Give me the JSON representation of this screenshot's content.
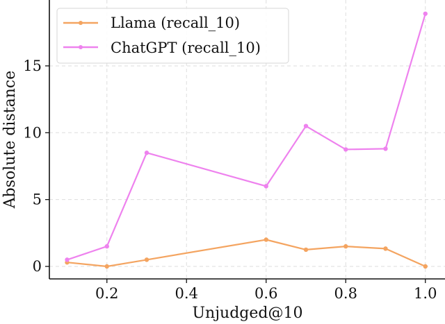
{
  "chart_data": {
    "type": "line",
    "title": "",
    "xlabel": "Unjudged@10",
    "ylabel": "Absolute distance",
    "x": [
      0.1,
      0.2,
      0.3,
      0.6,
      0.7,
      0.8,
      0.9,
      1.0
    ],
    "series": [
      {
        "name": "Llama (recall_10)",
        "color": "#f4a460",
        "values": [
          0.3,
          0.0,
          0.5,
          2.0,
          1.25,
          1.5,
          1.33,
          0.0
        ]
      },
      {
        "name": "ChatGPT (recall_10)",
        "color": "#ee82ee",
        "values": [
          0.5,
          1.5,
          8.5,
          6.0,
          10.5,
          8.75,
          8.8,
          18.9
        ]
      }
    ],
    "xticks": [
      "0.2",
      "0.4",
      "0.6",
      "0.8",
      "1.0"
    ],
    "xtick_values": [
      0.2,
      0.4,
      0.6,
      0.8,
      1.0
    ],
    "yticks": [
      "0",
      "5",
      "10",
      "15"
    ],
    "ytick_values": [
      0,
      5,
      10,
      15
    ],
    "xlim": [
      0.05,
      1.05
    ],
    "ylim": [
      -0.95,
      19.9
    ],
    "grid": true,
    "legend_position": "upper left",
    "markers": "small circles"
  }
}
